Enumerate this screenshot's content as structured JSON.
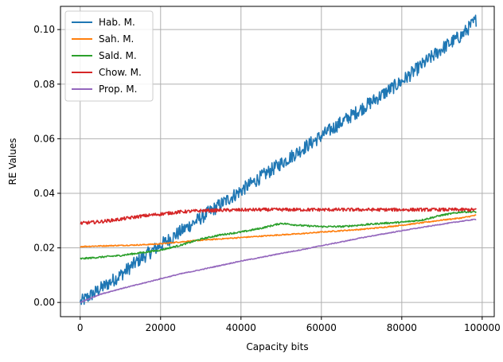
{
  "chart_data": {
    "type": "line",
    "title": "",
    "xlabel": "Capacity bits",
    "ylabel": "RE Values",
    "xlim": [
      -4900,
      103000
    ],
    "ylim": [
      -0.0052,
      0.1085
    ],
    "xticks": [
      0,
      20000,
      40000,
      60000,
      80000,
      100000
    ],
    "yticks": [
      0.0,
      0.02,
      0.04,
      0.06,
      0.08,
      0.1
    ],
    "xtick_labels": [
      "0",
      "20000",
      "40000",
      "60000",
      "80000",
      "100000"
    ],
    "ytick_labels": [
      "0.00",
      "0.02",
      "0.04",
      "0.06",
      "0.08",
      "0.10"
    ],
    "grid": true,
    "legend_position": "top-left",
    "x": [
      0,
      5000,
      10000,
      15000,
      20000,
      25000,
      30000,
      35000,
      40000,
      45000,
      50000,
      55000,
      60000,
      65000,
      70000,
      75000,
      80000,
      85000,
      90000,
      95000,
      98500
    ],
    "series": [
      {
        "name": "Hab. M.",
        "color": "#1f77b4",
        "noise": 0.0025,
        "values": [
          0.0,
          0.005,
          0.01,
          0.016,
          0.021,
          0.026,
          0.031,
          0.036,
          0.041,
          0.046,
          0.051,
          0.056,
          0.061,
          0.066,
          0.071,
          0.076,
          0.081,
          0.087,
          0.093,
          0.098,
          0.1035
        ]
      },
      {
        "name": "Sah. M.",
        "color": "#ff7f0e",
        "noise": 0.0002,
        "values": [
          0.0205,
          0.0207,
          0.0209,
          0.0211,
          0.0215,
          0.0222,
          0.0228,
          0.0233,
          0.0238,
          0.0243,
          0.0248,
          0.0252,
          0.0258,
          0.0263,
          0.0268,
          0.0275,
          0.0283,
          0.0292,
          0.0302,
          0.031,
          0.032
        ]
      },
      {
        "name": "Sald. M.",
        "color": "#2ca02c",
        "noise": 0.0003,
        "values": [
          0.016,
          0.0166,
          0.0172,
          0.0182,
          0.0192,
          0.021,
          0.0232,
          0.0248,
          0.0258,
          0.0272,
          0.029,
          0.0282,
          0.0278,
          0.0278,
          0.0284,
          0.029,
          0.0294,
          0.0302,
          0.032,
          0.0332,
          0.0332
        ]
      },
      {
        "name": "Chow. M.",
        "color": "#d62728",
        "noise": 0.0006,
        "values": [
          0.029,
          0.0296,
          0.0305,
          0.0316,
          0.0324,
          0.0332,
          0.0336,
          0.0338,
          0.0339,
          0.034,
          0.034,
          0.034,
          0.034,
          0.034,
          0.034,
          0.034,
          0.034,
          0.034,
          0.034,
          0.034,
          0.034
        ]
      },
      {
        "name": "Prop. M.",
        "color": "#9467bd",
        "noise": 0.00015,
        "values": [
          0.0,
          0.003,
          0.005,
          0.0068,
          0.0087,
          0.0105,
          0.012,
          0.0136,
          0.0152,
          0.0165,
          0.018,
          0.0193,
          0.0208,
          0.0222,
          0.0237,
          0.025,
          0.0263,
          0.0275,
          0.0287,
          0.0298,
          0.0305
        ]
      }
    ]
  }
}
